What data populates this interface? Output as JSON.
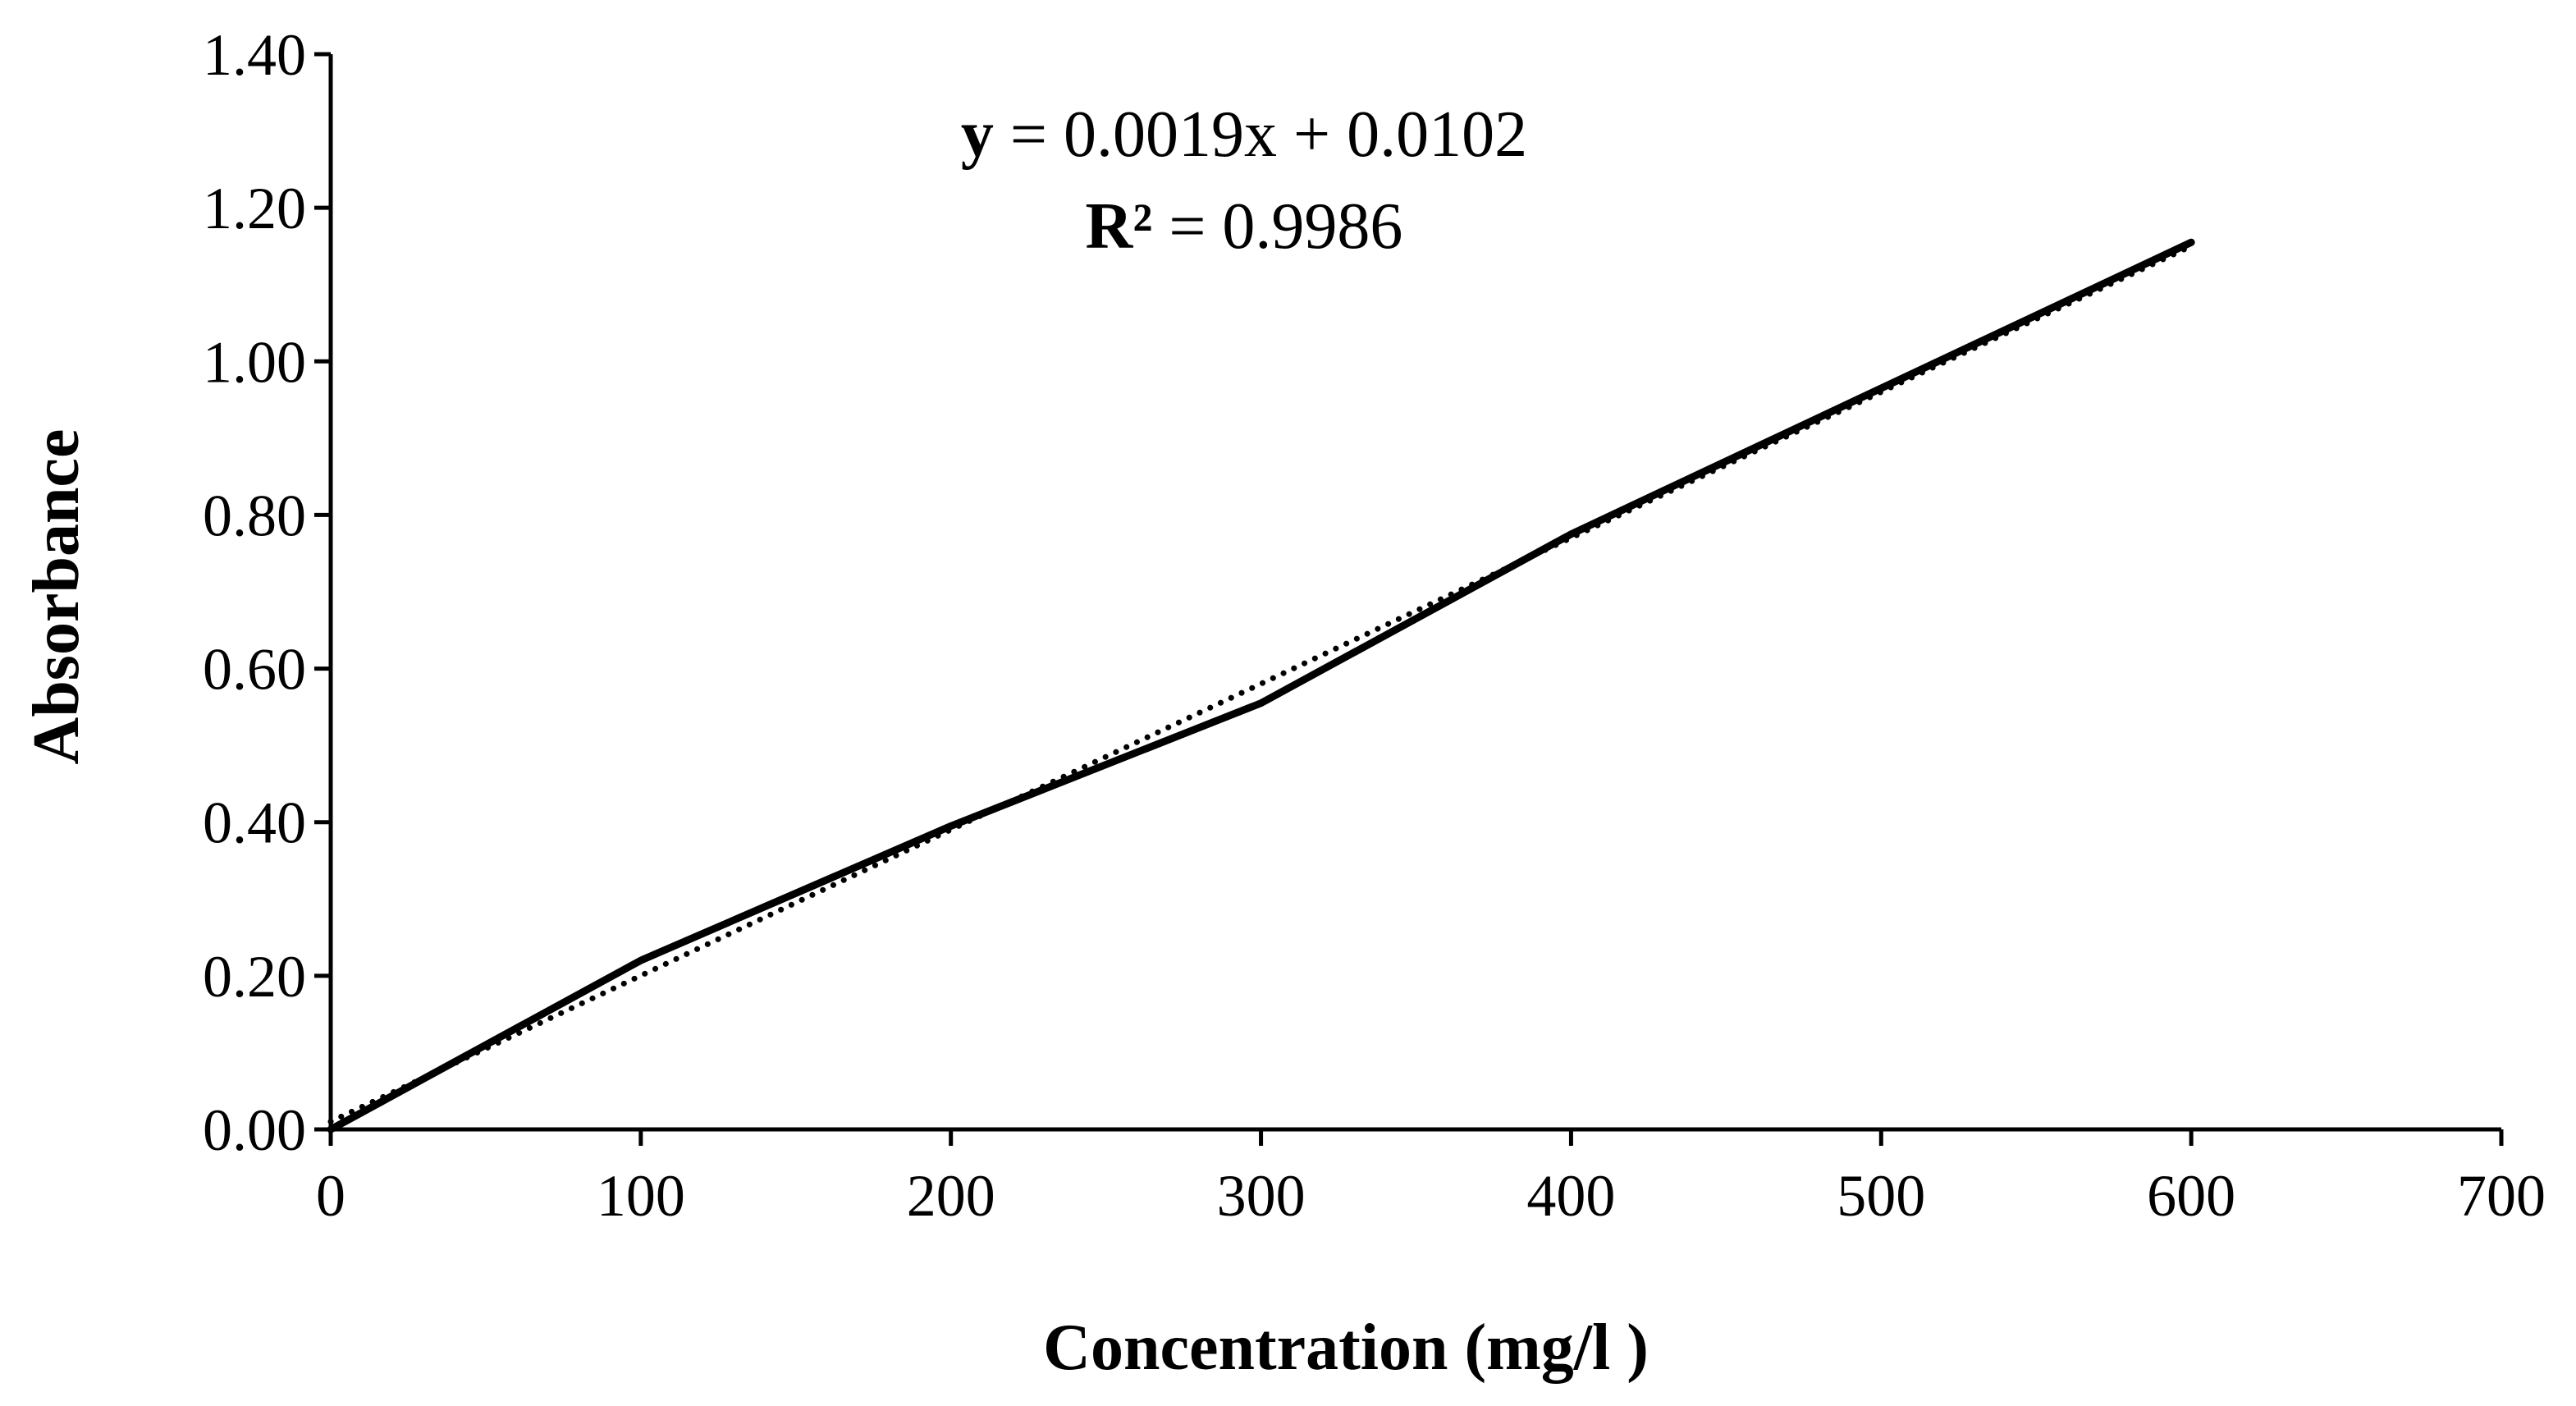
{
  "chart_data": {
    "type": "line",
    "title": "",
    "xlabel": "Concentration (mg/l )",
    "ylabel": "Absorbance",
    "xlim": [
      0,
      700
    ],
    "ylim": [
      0,
      1.4
    ],
    "x_ticks": [
      "0",
      "100",
      "200",
      "300",
      "400",
      "500",
      "600",
      "700"
    ],
    "y_ticks": [
      "0.00",
      "0.20",
      "0.40",
      "0.60",
      "0.80",
      "1.00",
      "1.20",
      "1.40"
    ],
    "grid": false,
    "legend": "none",
    "series": [
      {
        "style": "solid",
        "x": [
          0,
          100,
          200,
          300,
          400,
          600
        ],
        "y": [
          0.0,
          0.22,
          0.395,
          0.555,
          0.775,
          1.155
        ]
      }
    ],
    "trendline": {
      "style": "dotted",
      "slope": 0.0019,
      "intercept": 0.0102,
      "x_range": [
        0,
        600
      ]
    },
    "annotations": {
      "equation_var": "y",
      "equation_rest": " = 0.0019x + 0.0102",
      "r2_var": "R²",
      "r2_rest": " = 0.9986"
    },
    "colors": {
      "line": "#000000",
      "axis": "#000000",
      "background": "#ffffff"
    }
  }
}
